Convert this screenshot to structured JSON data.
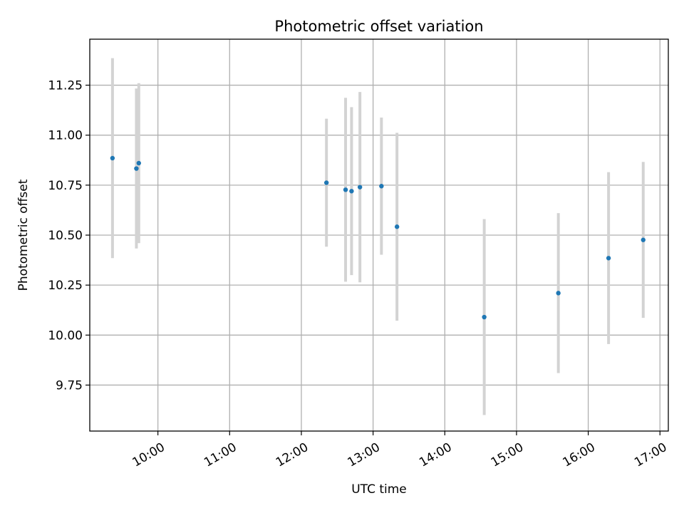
{
  "chart_data": {
    "type": "scatter",
    "title": "Photometric offset variation",
    "xlabel": "UTC time",
    "ylabel": "Photometric offset",
    "x_tick_labels": [
      "10:00",
      "11:00",
      "12:00",
      "13:00",
      "14:00",
      "15:00",
      "16:00",
      "17:00"
    ],
    "y_tick_labels": [
      "9.75",
      "10.00",
      "10.25",
      "10.50",
      "10.75",
      "11.00",
      "11.25"
    ],
    "xlim": [
      "09:03",
      "17:07"
    ],
    "ylim": [
      9.52,
      11.48
    ],
    "grid": true,
    "point_color": "#1f77b4",
    "errorbar_color": "#d3d3d3",
    "points": [
      {
        "x": "09:22",
        "y": 10.885,
        "ylow": 10.385,
        "yhigh": 11.385
      },
      {
        "x": "09:42",
        "y": 10.833,
        "ylow": 10.433,
        "yhigh": 11.233
      },
      {
        "x": "09:44",
        "y": 10.86,
        "ylow": 10.46,
        "yhigh": 11.26
      },
      {
        "x": "12:21",
        "y": 10.762,
        "ylow": 10.442,
        "yhigh": 11.082
      },
      {
        "x": "12:37",
        "y": 10.727,
        "ylow": 10.267,
        "yhigh": 11.187
      },
      {
        "x": "12:42",
        "y": 10.72,
        "ylow": 10.3,
        "yhigh": 11.14
      },
      {
        "x": "12:49",
        "y": 10.74,
        "ylow": 10.264,
        "yhigh": 11.216
      },
      {
        "x": "13:07",
        "y": 10.745,
        "ylow": 10.402,
        "yhigh": 11.088
      },
      {
        "x": "13:20",
        "y": 10.542,
        "ylow": 10.072,
        "yhigh": 11.012
      },
      {
        "x": "14:33",
        "y": 10.09,
        "ylow": 9.6,
        "yhigh": 10.58
      },
      {
        "x": "15:35",
        "y": 10.21,
        "ylow": 9.81,
        "yhigh": 10.61
      },
      {
        "x": "16:17",
        "y": 10.385,
        "ylow": 9.955,
        "yhigh": 10.815
      },
      {
        "x": "16:46",
        "y": 10.476,
        "ylow": 10.086,
        "yhigh": 10.866
      }
    ]
  }
}
